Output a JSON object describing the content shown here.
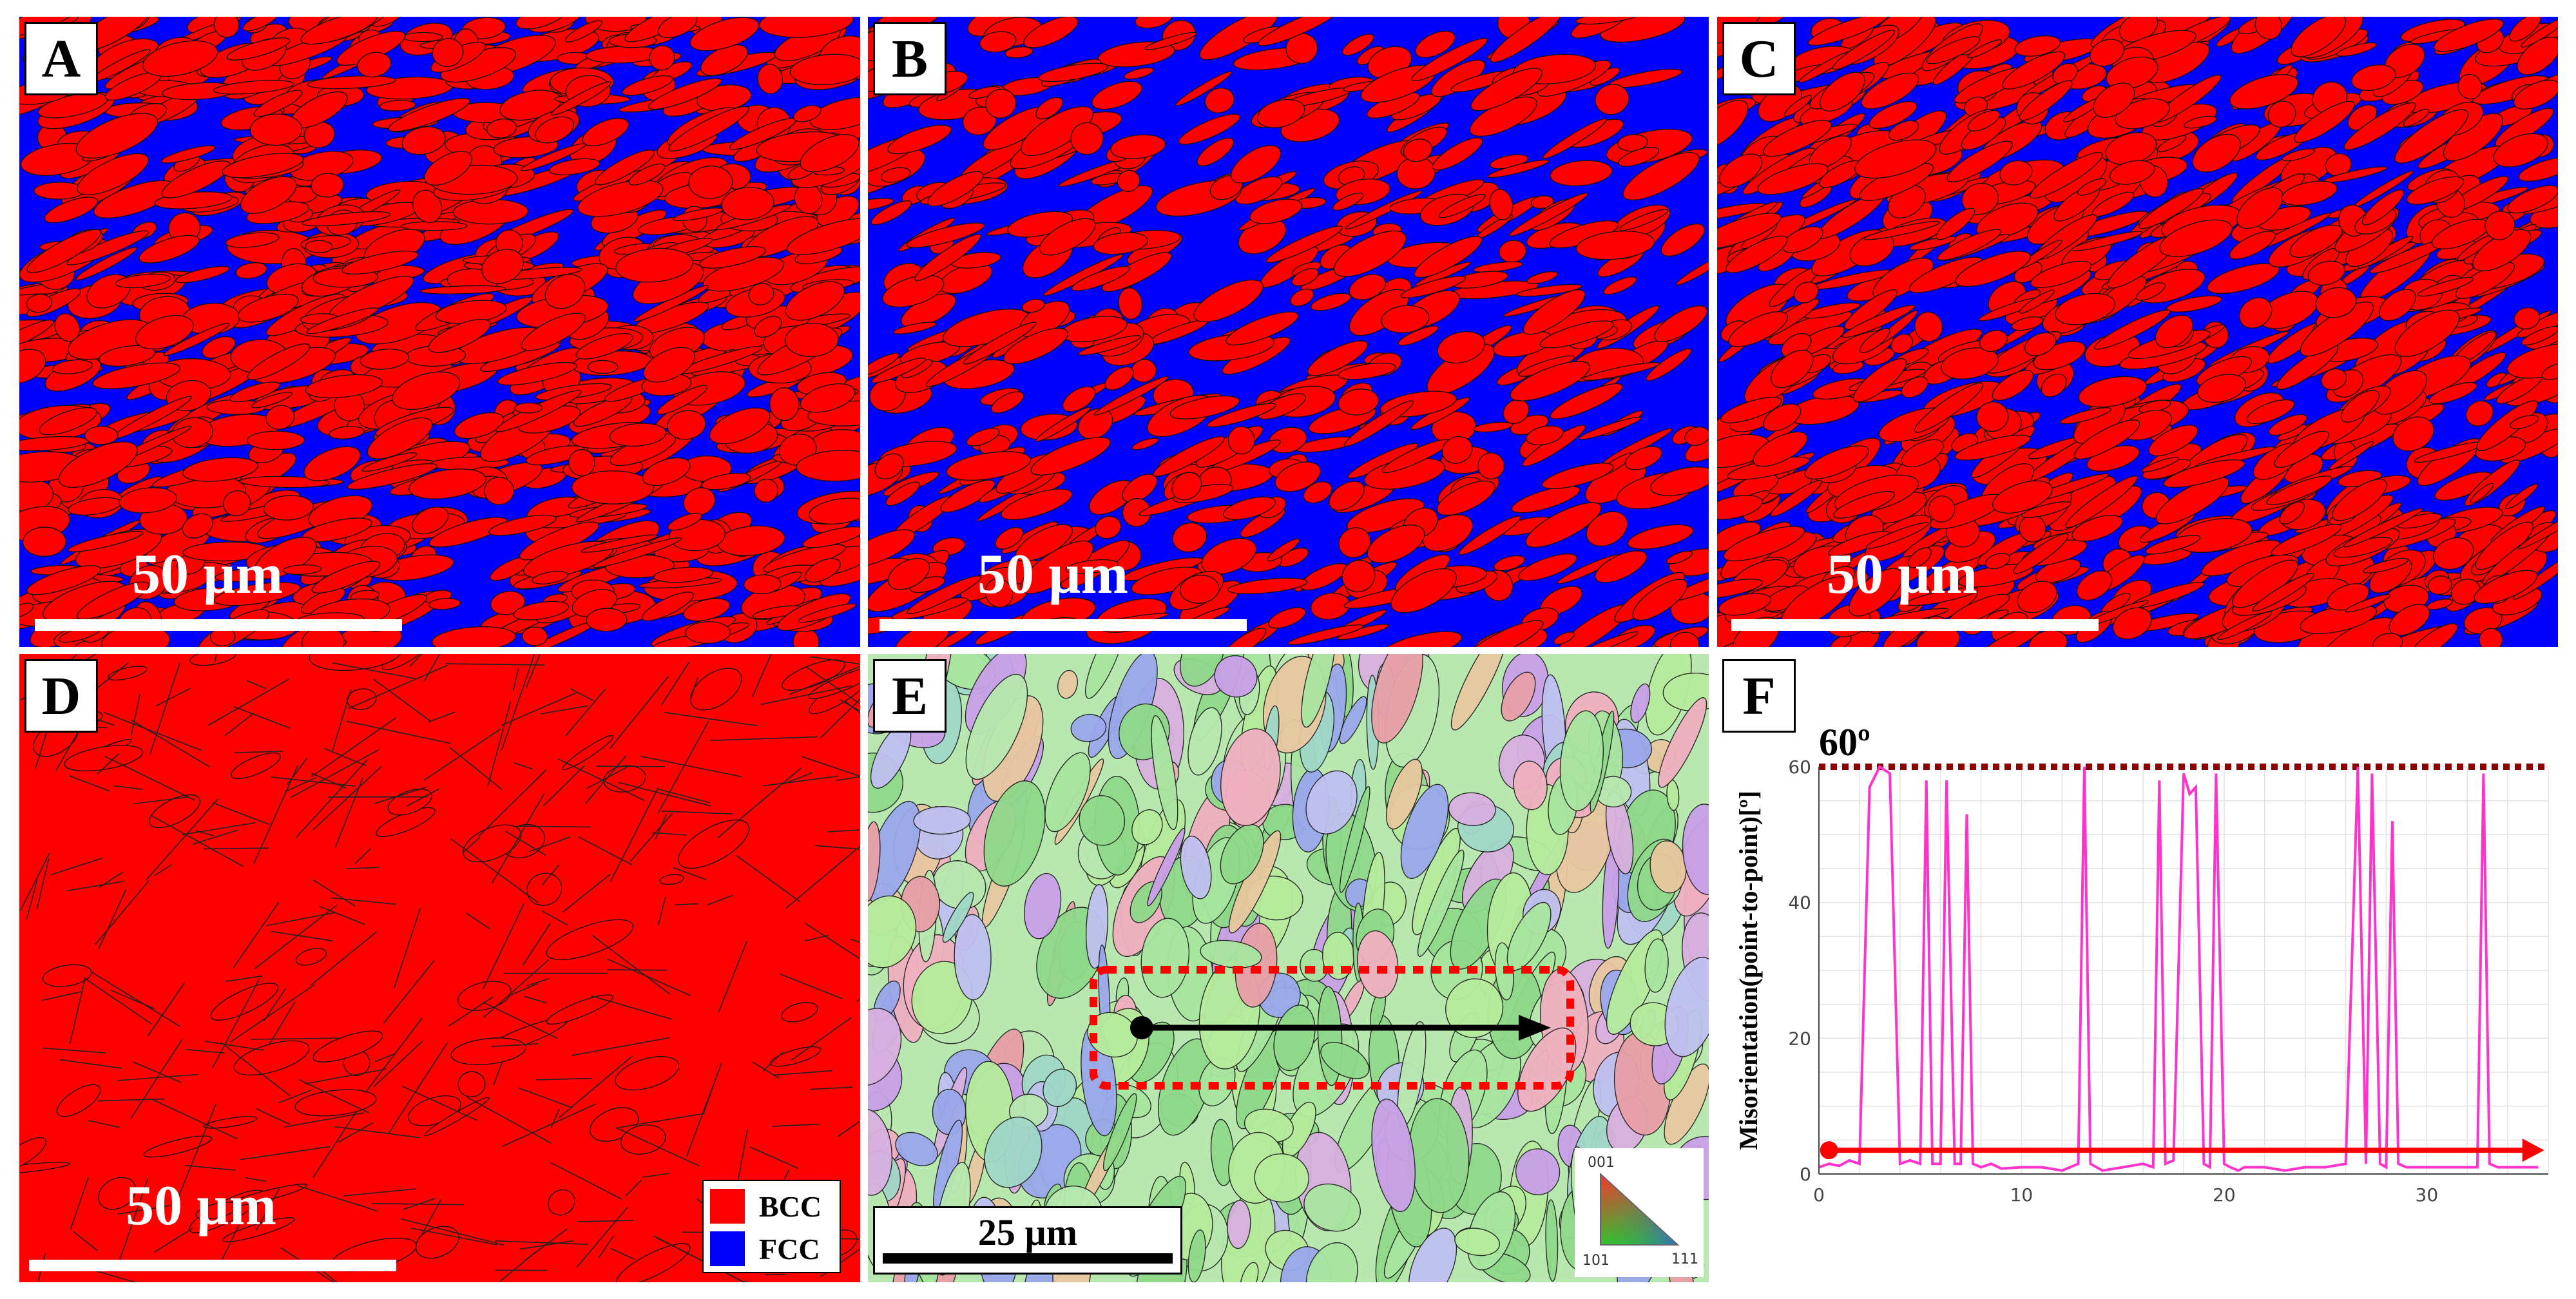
{
  "panels": {
    "A": {
      "letter": "A",
      "scale_label": "50 µm"
    },
    "B": {
      "letter": "B",
      "scale_label": "50 µm"
    },
    "C": {
      "letter": "C",
      "scale_label": "50 µm"
    },
    "D": {
      "letter": "D",
      "scale_label": "50 µm",
      "legend": [
        {
          "label": "BCC",
          "color": "#ff0000"
        },
        {
          "label": "FCC",
          "color": "#0000ff"
        }
      ]
    },
    "E": {
      "letter": "E",
      "scale_label": "25 µm",
      "ipf_key": {
        "top": "001",
        "left": "101",
        "right": "111"
      }
    },
    "F": {
      "letter": "F",
      "annotation": "60º"
    }
  },
  "colors": {
    "bcc": "#ff0000",
    "fcc": "#0000ff",
    "profile": "#ff33cc",
    "arrow": "#ff0000",
    "dashed": "#8b0000"
  },
  "chart_data": {
    "type": "line",
    "title": "",
    "xlabel": "",
    "ylabel": "Misorientation(point-to-point)[º]",
    "xlim": [
      0,
      36
    ],
    "ylim": [
      0,
      60
    ],
    "xticks": [
      0,
      10,
      20,
      30
    ],
    "yticks": [
      0,
      20,
      40,
      60
    ],
    "reference_line": 60,
    "grid": true,
    "series": [
      {
        "x": [
          0,
          0.5,
          1,
          1.5,
          2,
          2.5,
          3,
          3.5,
          4,
          4.5,
          5,
          5.3,
          5.6,
          6,
          6.3,
          6.7,
          7,
          7.3,
          7.6,
          8,
          8.5,
          9,
          10,
          11,
          12,
          12.8,
          13.1,
          13.4,
          14,
          15,
          16,
          16.5,
          16.8,
          17.1,
          17.5,
          18,
          18.3,
          18.6,
          19,
          19.3,
          19.6,
          20,
          20.3,
          20.7,
          21,
          22,
          23,
          24,
          25,
          26,
          26.6,
          27,
          27.3,
          27.7,
          28,
          28.3,
          28.6,
          29,
          29.3,
          29.6,
          30,
          31,
          32,
          32.5,
          32.8,
          33.1,
          33.5,
          34,
          35,
          35.5
        ],
        "y": [
          1,
          1.5,
          1.2,
          2,
          1.5,
          57,
          60,
          59,
          1.5,
          2,
          1.5,
          58,
          1.5,
          1.5,
          58,
          1.5,
          1.5,
          53,
          1.5,
          1,
          1.5,
          0.8,
          1,
          1,
          0.5,
          1.5,
          60,
          1.5,
          0.5,
          1,
          1.5,
          1,
          58,
          1.5,
          2,
          59,
          56,
          57,
          1.5,
          1,
          59,
          1.5,
          1,
          0.5,
          1,
          1,
          0.5,
          1,
          1,
          1.5,
          60,
          1.5,
          59,
          1.5,
          1,
          52,
          1.5,
          1,
          1,
          1,
          1,
          1,
          1,
          1,
          59,
          1.5,
          1,
          1,
          1,
          1
        ]
      }
    ]
  }
}
